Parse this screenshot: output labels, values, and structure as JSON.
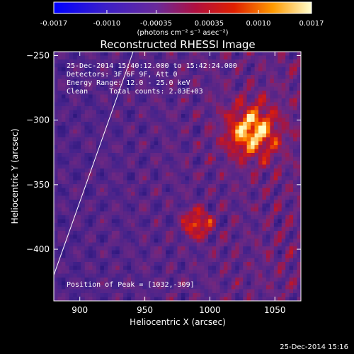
{
  "colorbar": {
    "tick_labels": [
      "-0.0017",
      "-0.0010",
      "-0.00035",
      "0.00035",
      "0.0010",
      "0.0017"
    ],
    "tick_values": [
      -0.0017,
      -0.001,
      -0.00035,
      0.00035,
      0.001,
      0.0017
    ],
    "range": [
      -0.0017,
      0.0017
    ],
    "unit_label": "(photons cm⁻² s⁻¹ asec⁻²)"
  },
  "chart_data": {
    "type": "heatmap",
    "title": "Reconstructed RHESSI Image",
    "xlabel": "Heliocentric X (arcsec)",
    "ylabel": "Heliocentric Y (arcsec)",
    "xlim": [
      880,
      1070
    ],
    "ylim": [
      -440,
      -247
    ],
    "x_ticks": [
      900,
      950,
      1000,
      1050
    ],
    "y_ticks": [
      -250,
      -300,
      -350,
      -400
    ],
    "x_tick_labels": [
      "900",
      "950",
      "1000",
      "1050"
    ],
    "y_tick_labels": [
      "−250",
      "−300",
      "−350",
      "−400"
    ],
    "limb_line": {
      "x": [
        880,
        941
      ],
      "y": [
        -420,
        -247
      ]
    },
    "peak_position": [
      1032,
      -309
    ],
    "grid": false
  },
  "annotations": {
    "time_range": "25-Dec-2014 15:40:12.000 to 15:42:24.000",
    "detectors": "Detectors: 3F 6F 9F, Att 0",
    "energy": "Energy Range: 12.0 - 25.0 keV",
    "method": "Clean     Total counts: 2.03E+03",
    "peak_label": "Position of Peak = [1032,-309]"
  },
  "footer": {
    "timestamp": "25-Dec-2014 15:16"
  },
  "colors": {
    "background": "#000000",
    "text": "#ffffff"
  }
}
